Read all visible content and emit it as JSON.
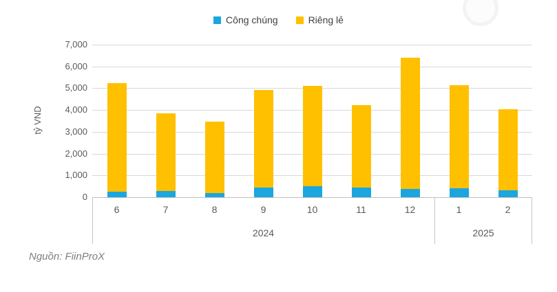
{
  "chart_data": {
    "type": "bar",
    "stacked": true,
    "title": "",
    "ylabel": "tỷ VND",
    "xlabel": "",
    "ylim": [
      0,
      7000
    ],
    "ytick_step": 1000,
    "yticks_top_to_bottom": [
      "7,000",
      "6,000",
      "5,000",
      "4,000",
      "3,000",
      "2,000",
      "1,000",
      "0"
    ],
    "grid": "horizontal",
    "legend_position": "top-center",
    "categories": [
      "6",
      "7",
      "8",
      "9",
      "10",
      "11",
      "12",
      "1",
      "2"
    ],
    "year_groups": [
      {
        "label": "2024",
        "count": 7
      },
      {
        "label": "2025",
        "count": 2
      }
    ],
    "series": [
      {
        "name": "Công chúng",
        "color": "#1ba6df",
        "values": [
          250,
          270,
          200,
          450,
          500,
          440,
          390,
          400,
          320
        ]
      },
      {
        "name": "Riêng lẻ",
        "color": "#ffc000",
        "values": [
          4980,
          3570,
          3260,
          4460,
          4610,
          3770,
          6000,
          4740,
          3710
        ]
      }
    ],
    "stack_totals": [
      5230,
      3840,
      3460,
      4910,
      5110,
      4210,
      6390,
      5140,
      4030
    ]
  },
  "source": "Nguồn: FiinProX",
  "colors": {
    "cong_chung": "#1ba6df",
    "rieng_le": "#ffc000",
    "gridline": "#d9d9d9",
    "axis_line": "#bfbfbf",
    "tick_label": "#595959",
    "source_text": "#7f7f7f"
  }
}
